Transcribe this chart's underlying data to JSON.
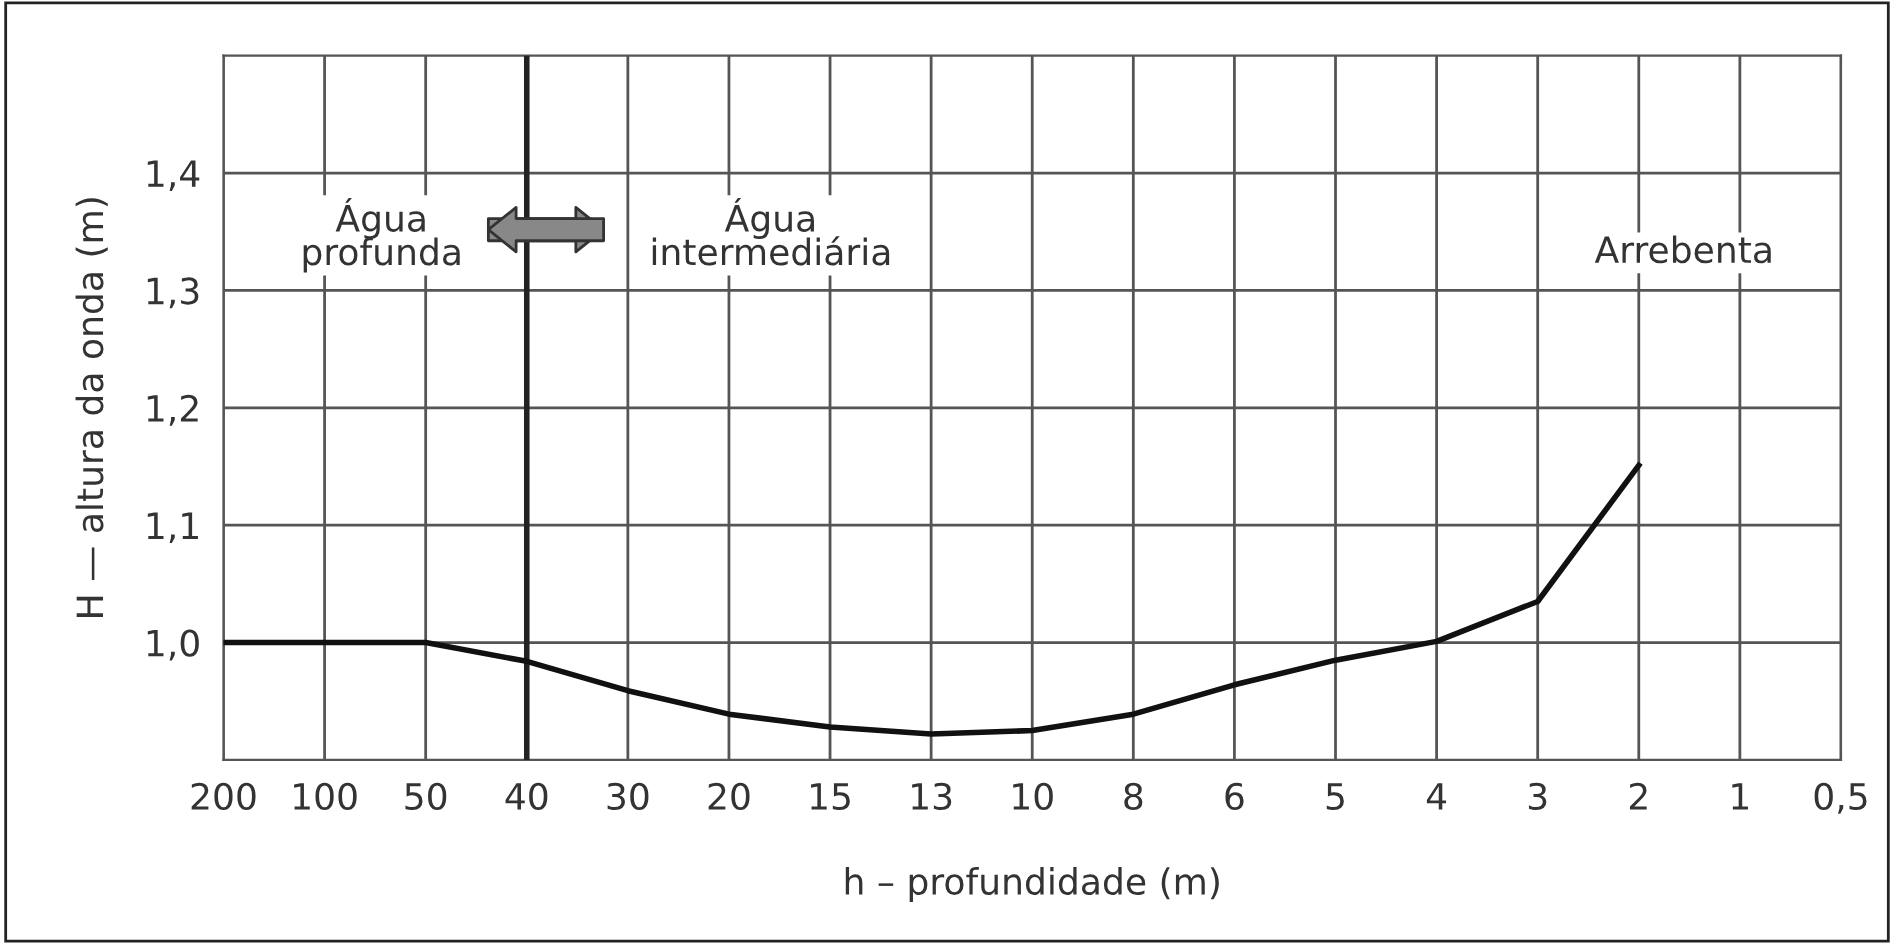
{
  "chart_data": {
    "type": "line",
    "xlabel": "h – profundidade (m)",
    "ylabel": "H — altura da onda (m)",
    "categories": [
      "200",
      "100",
      "50",
      "40",
      "30",
      "20",
      "15",
      "13",
      "10",
      "8",
      "6",
      "5",
      "4",
      "3",
      "2",
      "1",
      "0,5"
    ],
    "series": [
      {
        "color": "#111111",
        "values": [
          1.0,
          1.0,
          1.0,
          0.984,
          0.959,
          0.939,
          0.928,
          0.922,
          0.925,
          0.939,
          0.964,
          0.985,
          1.001,
          1.035,
          1.151,
          null,
          null
        ]
      }
    ],
    "ylim": [
      0.9,
      1.5
    ],
    "yticks": [
      {
        "value": 1.0,
        "label": "1,0"
      },
      {
        "value": 1.1,
        "label": "1,1"
      },
      {
        "value": 1.2,
        "label": "1,2"
      },
      {
        "value": 1.3,
        "label": "1,3"
      },
      {
        "value": 1.4,
        "label": "1,4"
      }
    ],
    "ref_lines": [
      {
        "axis": "x",
        "value": "40",
        "color": "#222222"
      }
    ],
    "annotations": [
      "Água\nprofunda",
      "Água\nintermediária",
      "Arrebenta"
    ],
    "grid": true,
    "legend": false,
    "marker": "none",
    "line_style": "solid"
  }
}
